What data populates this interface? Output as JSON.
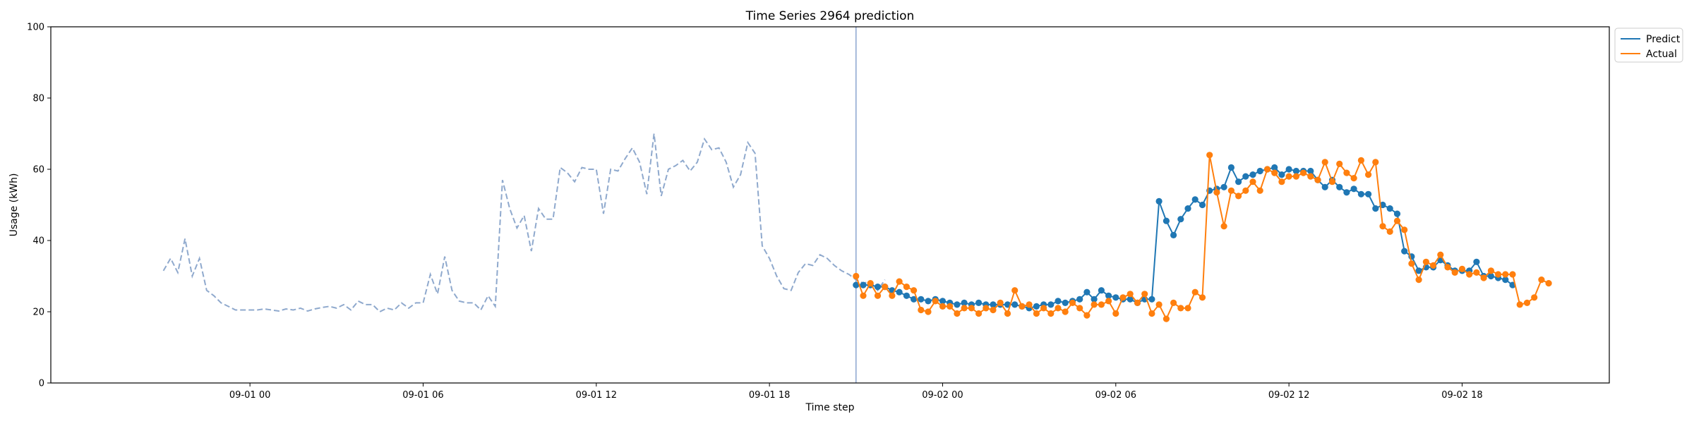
{
  "chart_data": {
    "type": "line",
    "title": "Time Series 2964 prediction",
    "xlabel": "Time step",
    "ylabel": "Usage (kWh)",
    "ylim": [
      0,
      100
    ],
    "xlim": [
      -6.9,
      47.1
    ],
    "grid": false,
    "legend_position": "upper-right-outside",
    "x_unit": "hours since 09-01 00:00",
    "x_ticks": [
      {
        "x": 0,
        "label": "09-01 00"
      },
      {
        "x": 6,
        "label": "09-01 06"
      },
      {
        "x": 12,
        "label": "09-01 12"
      },
      {
        "x": 18,
        "label": "09-01 18"
      },
      {
        "x": 24,
        "label": "09-02 00"
      },
      {
        "x": 30,
        "label": "09-02 06"
      },
      {
        "x": 36,
        "label": "09-02 12"
      },
      {
        "x": 42,
        "label": "09-02 18"
      }
    ],
    "y_ticks": [
      0,
      20,
      40,
      60,
      80,
      100
    ],
    "split_x": 21.0,
    "history": {
      "start_x": -3.0,
      "step": 0.25,
      "color": "#8fa9cd",
      "values": [
        31.5,
        35,
        31,
        40.5,
        30,
        35,
        26,
        24.5,
        22.5,
        21.5,
        20.5,
        20.5,
        20.5,
        20.5,
        20.8,
        20.5,
        20.2,
        20.8,
        20.5,
        21,
        20.2,
        20.8,
        21.2,
        21.5,
        21,
        22,
        20.5,
        23,
        22,
        22,
        20,
        21,
        20.5,
        22.5,
        21,
        22.5,
        22.5,
        30.5,
        25,
        35.5,
        26,
        23,
        22.5,
        22.5,
        20.5,
        24.5,
        21.5,
        57,
        49,
        43.5,
        47,
        37,
        49,
        46,
        46,
        60.5,
        59,
        56.5,
        60.5,
        60,
        60,
        47.5,
        60,
        59.5,
        63,
        66,
        62,
        53,
        70,
        52.5,
        60,
        61,
        62.5,
        59.5,
        62,
        68.5,
        65.5,
        66,
        62,
        55,
        58.5,
        67.5,
        64.5,
        38.5,
        35,
        30,
        26.5,
        26,
        31,
        33.5,
        33,
        36,
        35,
        33,
        31.5,
        30.5,
        29,
        28,
        28.5,
        26,
        29
      ]
    },
    "series": [
      {
        "name": "Predict",
        "color": "#1f77b4",
        "start_x": 21.0,
        "step": 0.25,
        "values": [
          27.5,
          27.5,
          27.5,
          27,
          27,
          26,
          25.5,
          24.5,
          23.5,
          23.5,
          23,
          23.5,
          23,
          22.5,
          22,
          22.5,
          22,
          22.5,
          22,
          22,
          22,
          22,
          22,
          21.5,
          21,
          21.5,
          22,
          22,
          23,
          22.5,
          23,
          23.5,
          25.5,
          23.5,
          26,
          24.5,
          24,
          23.5,
          23.5,
          22.5,
          23.5,
          23.5,
          51,
          45.5,
          41.5,
          46,
          49,
          51.5,
          50,
          54,
          54.5,
          55,
          60.5,
          56.5,
          58,
          58.5,
          59.5,
          60,
          60.5,
          58.5,
          60,
          59.5,
          59.5,
          59.5,
          57,
          55,
          57,
          55,
          53.5,
          54.5,
          53,
          53,
          49,
          50,
          49,
          47.5,
          37,
          35.5,
          31.5,
          32.5,
          32.5,
          34.5,
          33,
          31.5,
          31.5,
          31.5,
          34,
          30,
          30,
          29.5,
          29,
          27.5
        ]
      },
      {
        "name": "Actual",
        "color": "#ff7f0e",
        "start_x": 21.0,
        "step": 0.25,
        "values": [
          30,
          24.5,
          28,
          24.5,
          27,
          24.5,
          28.5,
          27,
          26,
          20.5,
          20,
          23,
          21.5,
          21.5,
          19.5,
          21,
          21,
          19.5,
          21,
          20.5,
          22.5,
          19.5,
          26,
          21.5,
          22,
          19.5,
          21,
          19.5,
          21,
          20,
          22.5,
          21,
          19,
          22,
          22,
          23,
          19.5,
          24,
          25,
          22.5,
          25,
          19.5,
          22,
          18,
          22.5,
          21,
          21,
          25.5,
          24,
          64,
          53.5,
          44,
          54,
          52.5,
          54,
          56.5,
          54,
          60,
          59,
          56.5,
          58,
          58,
          59,
          58,
          57,
          62,
          56.5,
          61.5,
          59,
          57.5,
          62.5,
          58.5,
          62,
          44,
          42.5,
          45.5,
          43,
          33.5,
          29,
          34,
          33,
          36,
          32.5,
          31,
          32,
          30.5,
          31,
          29.5,
          31.5,
          30.5,
          30.5,
          30.5,
          22,
          22.5,
          24,
          29,
          28
        ]
      }
    ]
  },
  "legend": {
    "items": [
      {
        "label": "Predict",
        "color": "#1f77b4"
      },
      {
        "label": "Actual",
        "color": "#ff7f0e"
      }
    ]
  }
}
